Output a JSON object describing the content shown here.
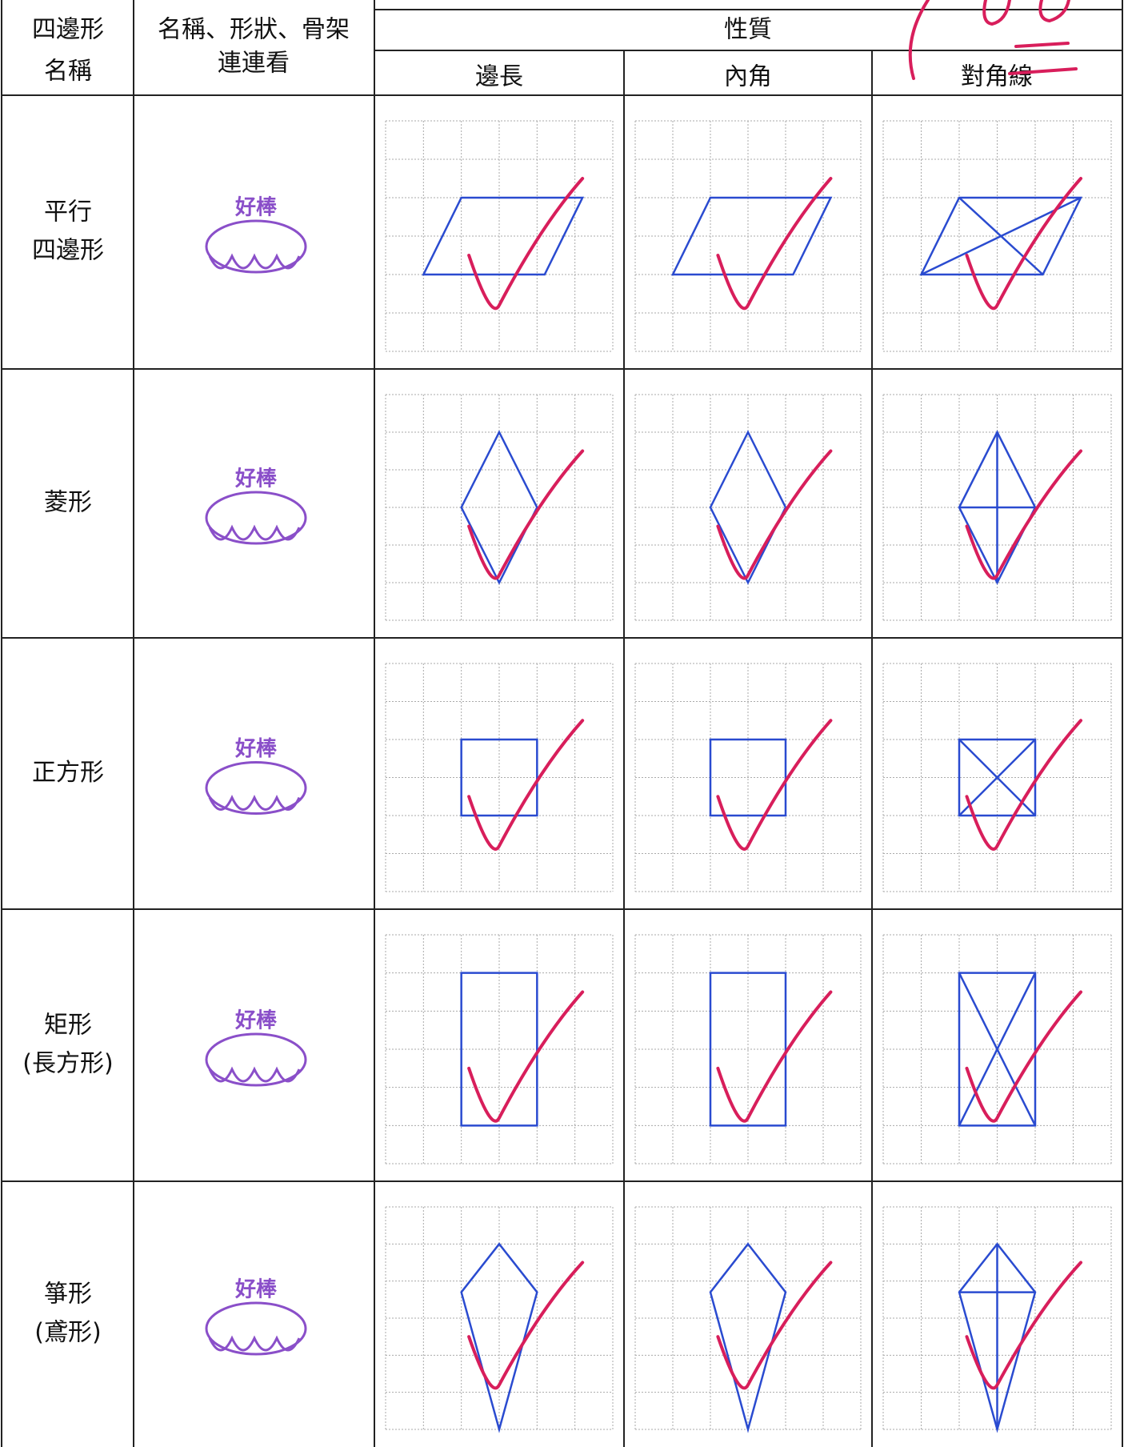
{
  "header": {
    "name_col": [
      "四邊形",
      "名稱"
    ],
    "match_col": [
      "名稱、形狀、骨架",
      "連連看"
    ],
    "properties": "性質",
    "sides": "邊長",
    "angles": "內角",
    "diagonals": "對角線"
  },
  "rows": [
    {
      "name": [
        "平行",
        "四邊形"
      ],
      "stamp": "好棒"
    },
    {
      "name": [
        "菱形"
      ],
      "stamp": "好棒"
    },
    {
      "name": [
        "正方形"
      ],
      "stamp": "好棒"
    },
    {
      "name": [
        "矩形",
        "(長方形)"
      ],
      "stamp": "好棒"
    },
    {
      "name": [
        "箏形",
        "(鳶形)"
      ],
      "stamp": "好棒"
    }
  ]
}
